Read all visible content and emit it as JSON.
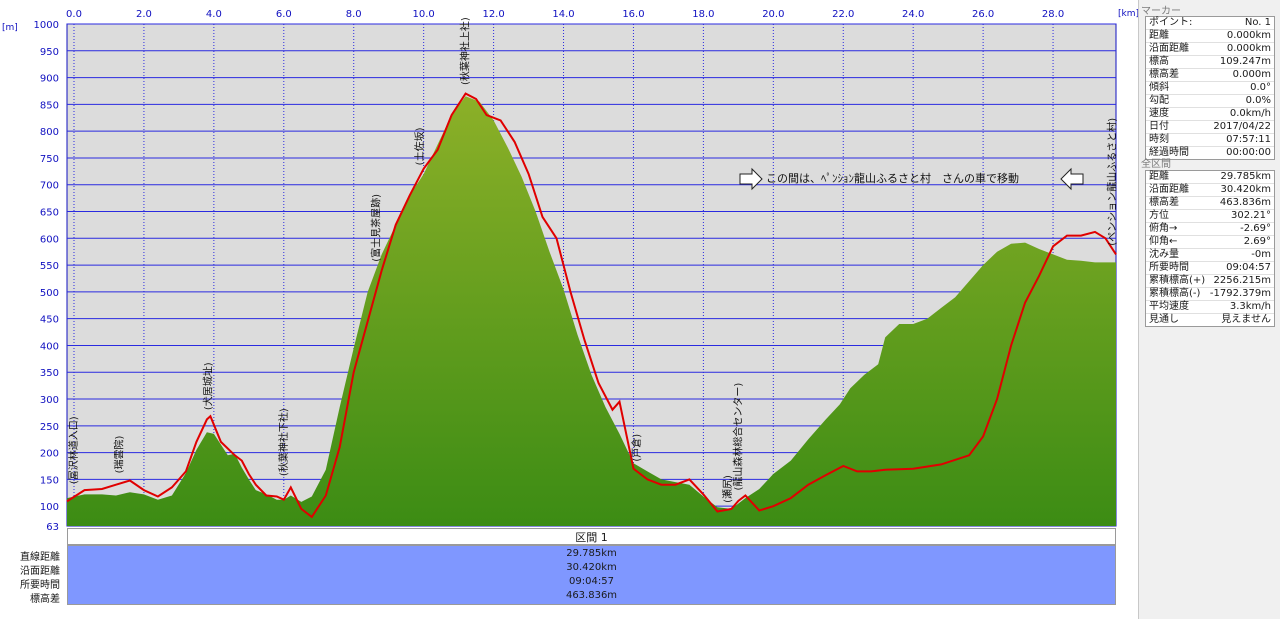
{
  "marker_panel": {
    "title": "マーカー",
    "rows": [
      {
        "label": "ポイント:",
        "value": "No. 1"
      },
      {
        "label": "距離",
        "value": "0.000km"
      },
      {
        "label": "沿面距離",
        "value": "0.000km"
      },
      {
        "label": "標高",
        "value": "109.247m"
      },
      {
        "label": "標高差",
        "value": "0.000m"
      },
      {
        "label": "傾斜",
        "value": "0.0°"
      },
      {
        "label": "勾配",
        "value": "0.0%"
      },
      {
        "label": "速度",
        "value": "0.0km/h"
      },
      {
        "label": "日付",
        "value": "2017/04/22"
      },
      {
        "label": "時刻",
        "value": "07:57:11"
      },
      {
        "label": "経過時間",
        "value": "00:00:00"
      }
    ]
  },
  "section_panel": {
    "title": "全区間",
    "rows": [
      {
        "label": "距離",
        "value": "29.785km"
      },
      {
        "label": "沿面距離",
        "value": "30.420km"
      },
      {
        "label": "標高差",
        "value": "463.836m"
      },
      {
        "label": "方位",
        "value": "302.21°"
      },
      {
        "label": "俯角→",
        "value": "-2.69°"
      },
      {
        "label": "仰角←",
        "value": "2.69°"
      },
      {
        "label": "沈み量",
        "value": "-0m"
      },
      {
        "label": "所要時間",
        "value": "09:04:57"
      },
      {
        "label": "累積標高(+)",
        "value": "2256.215m"
      },
      {
        "label": "累積標高(-)",
        "value": "-1792.379m"
      },
      {
        "label": "平均速度",
        "value": "3.3km/h"
      },
      {
        "label": "見通し",
        "value": "見えません"
      }
    ]
  },
  "summary": {
    "header": "区間 1",
    "rows": [
      {
        "label": "直線距離",
        "value": "29.785km"
      },
      {
        "label": "沿面距離",
        "value": "30.420km"
      },
      {
        "label": "所要時間",
        "value": "09:04:57"
      },
      {
        "label": "標高差",
        "value": "463.836m"
      }
    ]
  },
  "chart_data": {
    "type": "area",
    "x_unit": "[km]",
    "y_unit": "[m]",
    "xlim": [
      -0.2,
      29.8
    ],
    "ylim": [
      63,
      1000
    ],
    "x_ticks": [
      "0.0",
      "2.0",
      "4.0",
      "6.0",
      "8.0",
      "10.0",
      "12.0",
      "14.0",
      "16.0",
      "18.0",
      "20.0",
      "22.0",
      "24.0",
      "26.0",
      "28.0"
    ],
    "x_tick_values": [
      0,
      2,
      4,
      6,
      8,
      10,
      12,
      14,
      16,
      18,
      20,
      22,
      24,
      26,
      28
    ],
    "y_ticks": [
      "63",
      "100",
      "150",
      "200",
      "250",
      "300",
      "350",
      "400",
      "450",
      "500",
      "550",
      "600",
      "650",
      "700",
      "750",
      "800",
      "850",
      "900",
      "950",
      "1000"
    ],
    "y_tick_values": [
      63,
      100,
      150,
      200,
      250,
      300,
      350,
      400,
      450,
      500,
      550,
      600,
      650,
      700,
      750,
      800,
      850,
      900,
      950,
      1000
    ],
    "grid": true,
    "colors": {
      "plot_bg": "#dcdcdc",
      "grid": "#2a2ae0",
      "terrain_top": "#8cb028",
      "terrain_bottom": "#3c8c14",
      "route": "#e00000"
    },
    "annotation": {
      "text": "この間は、ﾍﾟﾝｼｮﾝ龍山ふるさと村　さんの車で移動",
      "x": 20.5,
      "y": 698
    },
    "place_labels": [
      {
        "text": "(冨沢林道入口)",
        "x": 0.0,
        "y": 130
      },
      {
        "text": "(瑞雲院)",
        "x": 1.3,
        "y": 150
      },
      {
        "text": "(犬居城址)",
        "x": 3.85,
        "y": 268
      },
      {
        "text": "(秋葉神社下社)",
        "x": 6.0,
        "y": 145
      },
      {
        "text": "(富士見茶屋跡)",
        "x": 8.65,
        "y": 545
      },
      {
        "text": "(土佐坂)",
        "x": 9.9,
        "y": 725
      },
      {
        "text": "(秋葉神社上社)",
        "x": 11.2,
        "y": 875
      },
      {
        "text": "(戸倉)",
        "x": 16.1,
        "y": 172
      },
      {
        "text": "(瀬尻)",
        "x": 18.7,
        "y": 95
      },
      {
        "text": "(龍山森林総合センター)",
        "x": 19.0,
        "y": 118
      },
      {
        "text": "(ペンション龍山ふるさと村)",
        "x": 29.7,
        "y": 575
      }
    ],
    "terrain": {
      "x": [
        -0.2,
        0.3,
        0.8,
        1.2,
        1.6,
        2.0,
        2.4,
        2.8,
        3.2,
        3.5,
        3.8,
        4.0,
        4.2,
        4.4,
        4.6,
        4.8,
        5.0,
        5.2,
        5.5,
        5.8,
        6.0,
        6.2,
        6.5,
        6.8,
        7.2,
        7.6,
        8.0,
        8.4,
        8.8,
        9.2,
        9.6,
        10.0,
        10.4,
        10.8,
        11.2,
        11.6,
        12.0,
        12.4,
        12.8,
        13.2,
        13.6,
        14.0,
        14.4,
        14.8,
        15.2,
        15.6,
        16.0,
        16.4,
        16.8,
        17.2,
        17.6,
        18.0,
        18.4,
        18.8,
        19.2,
        19.6,
        20.0,
        20.5,
        21.0,
        21.5,
        21.9,
        22.2,
        22.6,
        23.0,
        23.2,
        23.6,
        24.0,
        24.4,
        24.8,
        25.2,
        25.6,
        26.0,
        26.4,
        26.8,
        27.2,
        27.6,
        28.0,
        28.4,
        28.8,
        29.2,
        29.8
      ],
      "y": [
        115,
        122,
        122,
        120,
        126,
        122,
        112,
        120,
        162,
        205,
        238,
        235,
        215,
        195,
        198,
        172,
        150,
        130,
        122,
        112,
        112,
        120,
        108,
        118,
        168,
        285,
        395,
        500,
        570,
        625,
        680,
        720,
        775,
        830,
        865,
        855,
        820,
        770,
        715,
        650,
        575,
        505,
        420,
        345,
        285,
        235,
        180,
        165,
        150,
        145,
        140,
        118,
        98,
        95,
        115,
        132,
        160,
        185,
        225,
        262,
        290,
        320,
        345,
        365,
        415,
        440,
        440,
        450,
        470,
        490,
        520,
        550,
        575,
        590,
        592,
        580,
        570,
        560,
        558,
        555,
        555
      ]
    },
    "route": {
      "x": [
        -0.2,
        0.3,
        0.8,
        1.2,
        1.6,
        2.0,
        2.4,
        2.8,
        3.2,
        3.5,
        3.8,
        3.9,
        4.2,
        4.6,
        4.8,
        5.0,
        5.2,
        5.5,
        5.8,
        6.0,
        6.2,
        6.5,
        6.8,
        7.2,
        7.6,
        8.0,
        8.4,
        8.8,
        9.2,
        9.6,
        10.0,
        10.4,
        10.8,
        11.2,
        11.5,
        11.8,
        12.2,
        12.6,
        13.0,
        13.4,
        13.8,
        14.2,
        14.6,
        15.0,
        15.4,
        15.6,
        16.0,
        16.4,
        16.8,
        17.2,
        17.6,
        18.0,
        18.4,
        18.8,
        19.0,
        19.2,
        19.6,
        20.0,
        20.5,
        21.0,
        21.5,
        22.0,
        22.4,
        22.8,
        23.2,
        24.0,
        24.8,
        25.6,
        26.0,
        26.4,
        26.8,
        27.2,
        27.6,
        28.0,
        28.4,
        28.8,
        29.2,
        29.5,
        29.8
      ],
      "y": [
        109,
        130,
        132,
        140,
        148,
        130,
        118,
        135,
        165,
        220,
        262,
        268,
        220,
        195,
        185,
        160,
        140,
        120,
        118,
        112,
        135,
        95,
        80,
        120,
        210,
        350,
        445,
        540,
        625,
        680,
        730,
        765,
        830,
        870,
        860,
        830,
        820,
        780,
        720,
        640,
        600,
        500,
        410,
        330,
        280,
        295,
        170,
        150,
        140,
        140,
        150,
        122,
        90,
        95,
        110,
        120,
        92,
        100,
        115,
        140,
        158,
        175,
        165,
        165,
        168,
        170,
        178,
        195,
        230,
        300,
        400,
        480,
        530,
        585,
        605,
        605,
        612,
        600,
        570
      ]
    }
  }
}
